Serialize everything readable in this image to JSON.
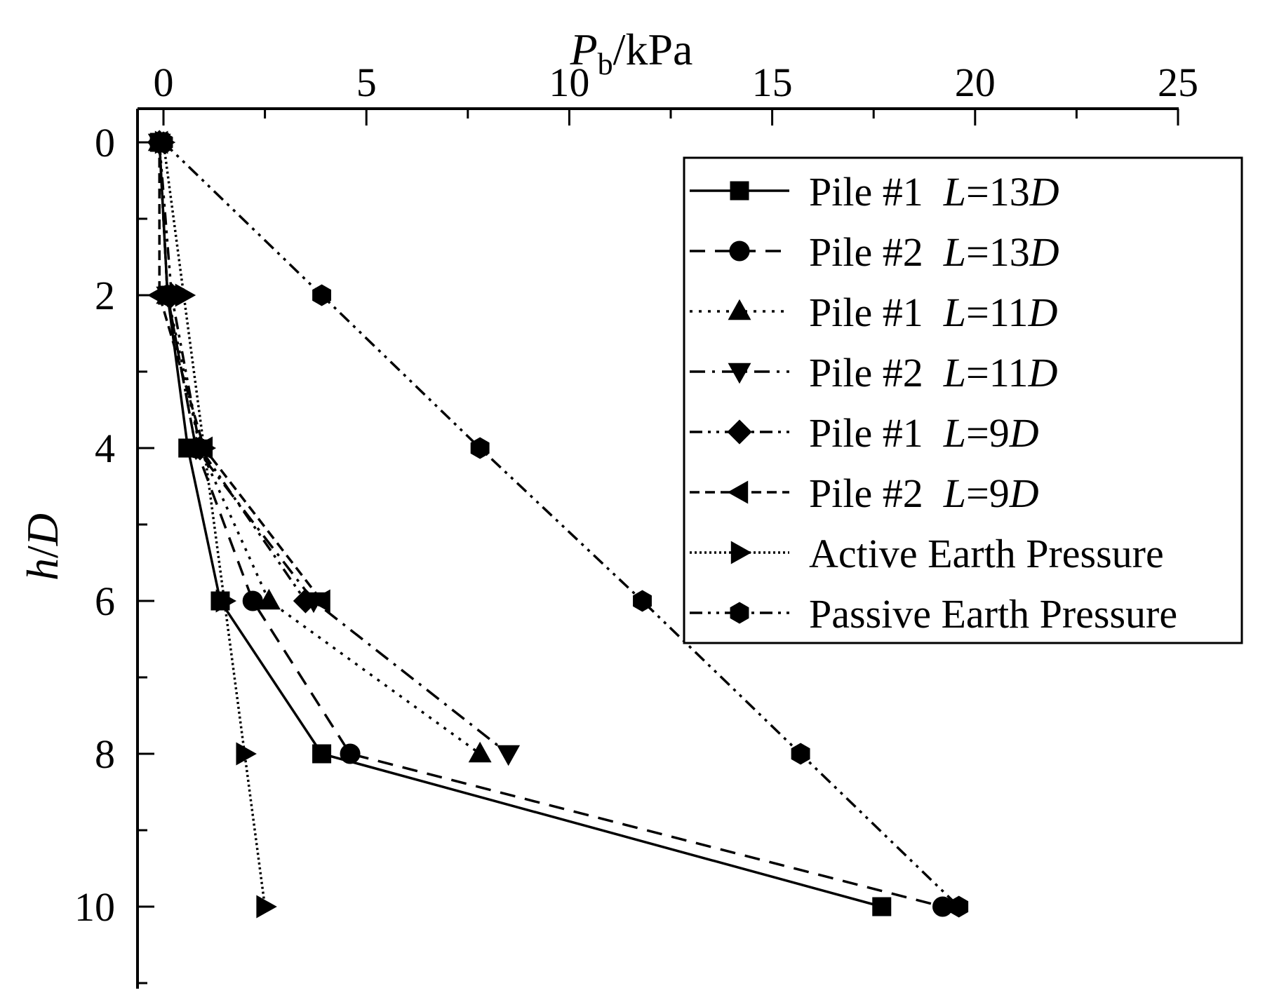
{
  "chart_data": {
    "type": "line",
    "xlabel": {
      "main": "P",
      "sub": "b",
      "unit": "/kPa"
    },
    "ylabel": {
      "main": "h",
      "sep": "/",
      "unit": "D"
    },
    "xlim": [
      -0.5,
      25
    ],
    "ylim": [
      0,
      11
    ],
    "x_ticks": [
      "0",
      "5",
      "10",
      "15",
      "20",
      "25"
    ],
    "y_ticks": [
      "0",
      "2",
      "4",
      "6",
      "8",
      "10"
    ],
    "x_axis_position": "top",
    "y_axis_inverted": true,
    "grid": false,
    "legend_position": "top-right",
    "series": [
      {
        "name": "Pile #1  L=13D",
        "label_parts": [
          "Pile #1  ",
          "L",
          "=13",
          "D"
        ],
        "marker": "square",
        "dash": "solid",
        "points": [
          [
            -0.1,
            0
          ],
          [
            0.1,
            2
          ],
          [
            0.6,
            4
          ],
          [
            1.4,
            6
          ],
          [
            3.9,
            8
          ],
          [
            17.7,
            10
          ]
        ]
      },
      {
        "name": "Pile #2  L=13D",
        "label_parts": [
          "Pile #2  ",
          "L",
          "=13",
          "D"
        ],
        "marker": "circle",
        "dash": "dash",
        "points": [
          [
            -0.1,
            0
          ],
          [
            0.1,
            2
          ],
          [
            0.8,
            4
          ],
          [
            2.2,
            6
          ],
          [
            4.6,
            8
          ],
          [
            19.2,
            10
          ]
        ]
      },
      {
        "name": "Pile #1  L=11D",
        "label_parts": [
          "Pile #1  ",
          "L",
          "=11",
          "D"
        ],
        "marker": "triangle-up",
        "dash": "dot",
        "points": [
          [
            -0.1,
            0
          ],
          [
            0.1,
            2
          ],
          [
            0.9,
            4
          ],
          [
            2.6,
            6
          ],
          [
            7.8,
            8
          ]
        ]
      },
      {
        "name": "Pile #2  L=11D",
        "label_parts": [
          "Pile #2  ",
          "L",
          "=11",
          "D"
        ],
        "marker": "triangle-down",
        "dash": "dash-dot",
        "points": [
          [
            -0.1,
            0
          ],
          [
            0.1,
            2
          ],
          [
            0.8,
            4
          ],
          [
            3.7,
            6
          ],
          [
            8.5,
            8
          ]
        ]
      },
      {
        "name": "Pile #1  L=9D",
        "label_parts": [
          "Pile #1  ",
          "L",
          "=9",
          "D"
        ],
        "marker": "diamond",
        "dash": "dash-dot-dot",
        "points": [
          [
            -0.1,
            0
          ],
          [
            0.2,
            2
          ],
          [
            0.9,
            4
          ],
          [
            3.5,
            6
          ]
        ]
      },
      {
        "name": "Pile #2  L=9D",
        "label_parts": [
          "Pile #2  ",
          "L",
          "=9",
          "D"
        ],
        "marker": "triangle-left",
        "dash": "short-dash",
        "points": [
          [
            -0.1,
            0
          ],
          [
            -0.1,
            2
          ],
          [
            1.0,
            4
          ],
          [
            3.9,
            6
          ]
        ]
      },
      {
        "name": "Active Earth Pressure",
        "label_parts": [
          "Active Earth Pressure"
        ],
        "marker": "triangle-right",
        "dash": "dense-dot",
        "points": [
          [
            0.0,
            0
          ],
          [
            0.5,
            2
          ],
          [
            1.0,
            4
          ],
          [
            1.5,
            6
          ],
          [
            2.0,
            8
          ],
          [
            2.5,
            10
          ]
        ]
      },
      {
        "name": "Passive Earth Pressure",
        "label_parts": [
          "Passive Earth Pressure"
        ],
        "marker": "hexagon",
        "dash": "dash-dot-dot",
        "points": [
          [
            0.0,
            0
          ],
          [
            3.9,
            2
          ],
          [
            7.8,
            4
          ],
          [
            11.8,
            6
          ],
          [
            15.7,
            8
          ],
          [
            19.6,
            10
          ]
        ]
      }
    ]
  }
}
